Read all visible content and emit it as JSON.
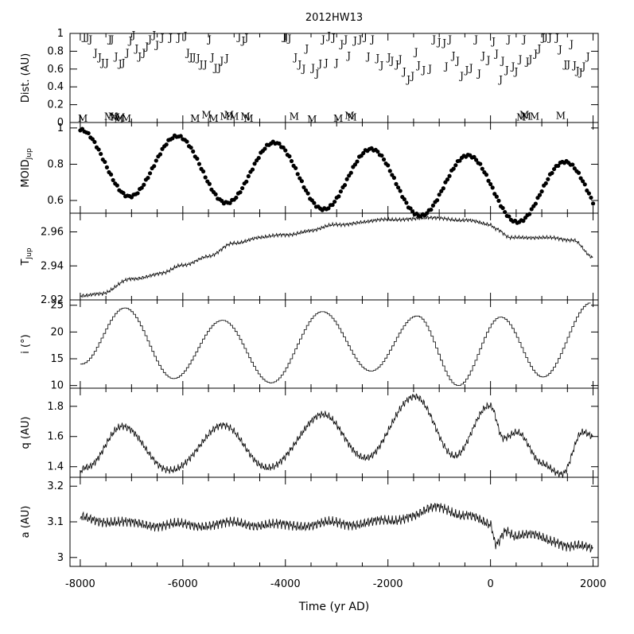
{
  "figure": {
    "title": "2012HW13",
    "xlabel": "Time (yr AD)",
    "xlim": [
      -8200,
      2100
    ],
    "xticks": [
      -8000,
      -6000,
      -4000,
      -2000,
      0,
      2000
    ]
  },
  "chart_data": [
    {
      "type": "scatter",
      "panel": "dist",
      "ylabel": "Dist. (AU)",
      "ylim": [
        0,
        1
      ],
      "yticks": [
        0,
        0.2,
        0.4,
        0.6,
        0.8,
        1
      ],
      "marker_types": [
        "J",
        "M"
      ],
      "J_points": [
        [
          -7920,
          0.97
        ],
        [
          -7860,
          0.97
        ],
        [
          -7800,
          0.94
        ],
        [
          -7700,
          0.79
        ],
        [
          -7620,
          0.74
        ],
        [
          -7560,
          0.68
        ],
        [
          -7480,
          0.68
        ],
        [
          -7420,
          0.94
        ],
        [
          -7380,
          0.94
        ],
        [
          -7300,
          0.75
        ],
        [
          -7220,
          0.67
        ],
        [
          -7160,
          0.68
        ],
        [
          -7080,
          0.79
        ],
        [
          -7020,
          0.93
        ],
        [
          -6960,
          0.99
        ],
        [
          -6900,
          0.84
        ],
        [
          -6840,
          0.75
        ],
        [
          -6760,
          0.79
        ],
        [
          -6700,
          0.86
        ],
        [
          -6640,
          0.94
        ],
        [
          -6560,
          0.99
        ],
        [
          -6500,
          0.88
        ],
        [
          -6400,
          0.96
        ],
        [
          -6240,
          0.96
        ],
        [
          -6080,
          0.96
        ],
        [
          -5950,
          0.98
        ],
        [
          -5900,
          0.79
        ],
        [
          -5840,
          0.74
        ],
        [
          -5780,
          0.74
        ],
        [
          -5700,
          0.73
        ],
        [
          -5640,
          0.66
        ],
        [
          -5560,
          0.66
        ],
        [
          -5480,
          0.94
        ],
        [
          -5420,
          0.74
        ],
        [
          -5360,
          0.62
        ],
        [
          -5290,
          0.62
        ],
        [
          -5240,
          0.7
        ],
        [
          -5140,
          0.73
        ],
        [
          -4900,
          0.97
        ],
        [
          -4820,
          0.93
        ],
        [
          -4760,
          0.96
        ],
        [
          -4020,
          0.97
        ],
        [
          -3980,
          0.97
        ],
        [
          -3920,
          0.95
        ],
        [
          -3800,
          0.74
        ],
        [
          -3720,
          0.66
        ],
        [
          -3640,
          0.61
        ],
        [
          -3580,
          0.84
        ],
        [
          -3460,
          0.62
        ],
        [
          -3380,
          0.56
        ],
        [
          -3320,
          0.67
        ],
        [
          -3260,
          0.94
        ],
        [
          -3200,
          0.68
        ],
        [
          -3150,
          0.98
        ],
        [
          -3060,
          0.96
        ],
        [
          -3000,
          0.68
        ],
        [
          -2900,
          0.89
        ],
        [
          -2820,
          0.94
        ],
        [
          -2760,
          0.76
        ],
        [
          -2640,
          0.93
        ],
        [
          -2540,
          0.94
        ],
        [
          -2440,
          0.97
        ],
        [
          -2380,
          0.75
        ],
        [
          -2300,
          0.94
        ],
        [
          -2200,
          0.73
        ],
        [
          -2120,
          0.65
        ],
        [
          -1980,
          0.74
        ],
        [
          -1920,
          0.7
        ],
        [
          -1820,
          0.66
        ],
        [
          -1760,
          0.72
        ],
        [
          -1680,
          0.58
        ],
        [
          -1600,
          0.49
        ],
        [
          -1520,
          0.53
        ],
        [
          -1450,
          0.8
        ],
        [
          -1400,
          0.65
        ],
        [
          -1300,
          0.6
        ],
        [
          -1180,
          0.61
        ],
        [
          -1100,
          0.94
        ],
        [
          -1000,
          0.91
        ],
        [
          -900,
          0.9
        ],
        [
          -860,
          0.64
        ],
        [
          -790,
          0.94
        ],
        [
          -720,
          0.76
        ],
        [
          -640,
          0.7
        ],
        [
          -560,
          0.53
        ],
        [
          -460,
          0.6
        ],
        [
          -380,
          0.62
        ],
        [
          -280,
          0.94
        ],
        [
          -220,
          0.56
        ],
        [
          -140,
          0.76
        ],
        [
          -40,
          0.71
        ],
        [
          60,
          0.92
        ],
        [
          120,
          0.78
        ],
        [
          200,
          0.49
        ],
        [
          240,
          0.7
        ],
        [
          320,
          0.6
        ],
        [
          360,
          0.94
        ],
        [
          440,
          0.64
        ],
        [
          500,
          0.58
        ],
        [
          580,
          0.72
        ],
        [
          660,
          0.94
        ],
        [
          720,
          0.69
        ],
        [
          780,
          0.72
        ],
        [
          880,
          0.78
        ],
        [
          950,
          0.84
        ],
        [
          1030,
          0.96
        ],
        [
          1080,
          0.97
        ],
        [
          1160,
          0.96
        ],
        [
          1300,
          0.96
        ],
        [
          1360,
          0.83
        ],
        [
          1460,
          0.66
        ],
        [
          1520,
          0.66
        ],
        [
          1580,
          0.89
        ],
        [
          1640,
          0.65
        ],
        [
          1700,
          0.59
        ],
        [
          1760,
          0.57
        ],
        [
          1820,
          0.64
        ],
        [
          1900,
          0.75
        ]
      ],
      "M_points": [
        [
          -7950,
          0.02
        ],
        [
          -7440,
          0.04
        ],
        [
          -7360,
          0.04
        ],
        [
          -7320,
          0.03
        ],
        [
          -7250,
          0.01
        ],
        [
          -7220,
          0.03
        ],
        [
          -7100,
          0.02
        ],
        [
          -5760,
          0.02
        ],
        [
          -5540,
          0.06
        ],
        [
          -5400,
          0.02
        ],
        [
          -5180,
          0.04
        ],
        [
          -5100,
          0.06
        ],
        [
          -5000,
          0.04
        ],
        [
          -4780,
          0.04
        ],
        [
          -4720,
          0.02
        ],
        [
          -3830,
          0.04
        ],
        [
          -3480,
          0.01
        ],
        [
          -2970,
          0.02
        ],
        [
          -2750,
          0.05
        ],
        [
          -2700,
          0.03
        ],
        [
          600,
          0.03
        ],
        [
          660,
          0.06
        ],
        [
          700,
          0.04
        ],
        [
          860,
          0.04
        ],
        [
          1370,
          0.05
        ]
      ]
    },
    {
      "type": "scatter",
      "panel": "moid",
      "ylabel": "MOID",
      "ylabel_sub": "Jup",
      "ylim": [
        0.53,
        1.03
      ],
      "yticks": [
        0.6,
        0.8,
        1
      ],
      "model": {
        "mean": 0.815,
        "amp": 0.175,
        "period": 1890,
        "phase_year": -7990,
        "trend_per_yr": -1.87e-05
      }
    },
    {
      "type": "line",
      "panel": "tjup",
      "ylabel": "T",
      "ylabel_sub": "Jup",
      "ylim": [
        2.92,
        2.971
      ],
      "yticks": [
        2.92,
        2.94,
        2.96
      ],
      "x": [
        -8000,
        -7600,
        -7000,
        -6400,
        -6000,
        -5500,
        -5000,
        -4500,
        -4000,
        -3500,
        -3000,
        -2500,
        -2000,
        -1500,
        -1000,
        -500,
        0,
        100,
        400,
        800,
        1200,
        1600,
        2000
      ],
      "y": [
        2.922,
        2.924,
        2.932,
        2.936,
        2.94,
        2.946,
        2.953,
        2.957,
        2.958,
        2.961,
        2.964,
        2.966,
        2.967,
        2.968,
        2.968,
        2.967,
        2.964,
        2.962,
        2.957,
        2.956,
        2.957,
        2.955,
        2.945
      ]
    },
    {
      "type": "line",
      "panel": "incl",
      "ylabel": "i (°)",
      "ylim": [
        9.5,
        26
      ],
      "yticks": [
        10,
        15,
        20,
        25
      ],
      "x": [
        -8000,
        -7150,
        -6200,
        -5250,
        -4300,
        -3300,
        -2350,
        -1450,
        -650,
        180,
        1000,
        1950
      ],
      "y": [
        14,
        24.5,
        11.3,
        22.2,
        10.5,
        23.8,
        12.7,
        23.0,
        10.0,
        22.8,
        11.6,
        25.5
      ]
    },
    {
      "type": "line",
      "panel": "q",
      "ylabel": "q (AU)",
      "ylim": [
        1.33,
        1.92
      ],
      "yticks": [
        1.4,
        1.6,
        1.8
      ],
      "x": [
        -8000,
        -7900,
        -7200,
        -6200,
        -5250,
        -4300,
        -3300,
        -2400,
        -1500,
        -700,
        0,
        250,
        500,
        1000,
        1400,
        1800,
        2000
      ],
      "y": [
        1.36,
        1.39,
        1.66,
        1.37,
        1.67,
        1.39,
        1.74,
        1.46,
        1.87,
        1.48,
        1.8,
        1.6,
        1.63,
        1.42,
        1.36,
        1.62,
        1.6
      ]
    },
    {
      "type": "line",
      "panel": "a",
      "ylabel": "a (AU)",
      "ylim": [
        2.975,
        3.225
      ],
      "yticks": [
        3,
        3.1,
        3.2
      ],
      "x": [
        -8000,
        -7000,
        -6000,
        -5000,
        -4000,
        -3000,
        -2000,
        -1500,
        -1000,
        -500,
        0,
        100,
        300,
        500,
        800,
        1200,
        1600,
        2000
      ],
      "y": [
        3.11,
        3.095,
        3.09,
        3.095,
        3.09,
        3.095,
        3.1,
        3.12,
        3.14,
        3.12,
        3.09,
        3.04,
        3.08,
        3.06,
        3.06,
        3.05,
        3.03,
        3.025
      ]
    }
  ]
}
